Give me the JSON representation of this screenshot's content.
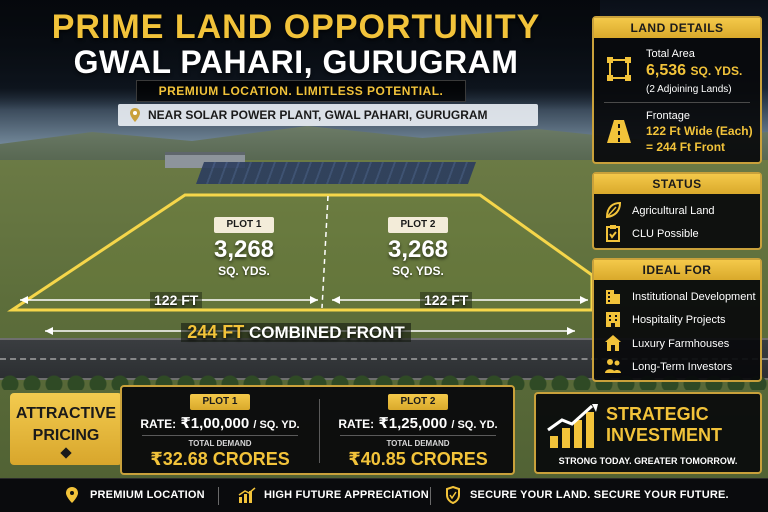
{
  "header": {
    "title": "PRIME LAND OPPORTUNITY",
    "subtitle": "GWAL PAHARI, GURUGRAM",
    "tagline": "PREMIUM LOCATION. LIMITLESS POTENTIAL.",
    "location": "NEAR SOLAR POWER PLANT, GWAL PAHARI, GURUGRAM"
  },
  "plots": [
    {
      "tag": "PLOT 1",
      "area": "3,268",
      "unit": "SQ. YDS.",
      "front": "122 FT"
    },
    {
      "tag": "PLOT 2",
      "area": "3,268",
      "unit": "SQ. YDS.",
      "front": "122 FT"
    }
  ],
  "combined": {
    "value": "244 FT",
    "label": "COMBINED FRONT"
  },
  "land_details": {
    "heading": "LAND DETAILS",
    "area_label": "Total Area",
    "area_value": "6,536",
    "area_unit": "SQ. YDS.",
    "area_note": "(2 Adjoining Lands)",
    "frontage_label": "Frontage",
    "frontage_each": "122 Ft",
    "frontage_each_note": "Wide (Each)",
    "frontage_total": "= 244 Ft Front"
  },
  "status": {
    "heading": "STATUS",
    "items": [
      "Agricultural Land",
      "CLU Possible"
    ]
  },
  "ideal_for": {
    "heading": "IDEAL FOR",
    "items": [
      "Institutional Development",
      "Hospitality Projects",
      "Luxury Farmhouses",
      "Long-Term Investors"
    ]
  },
  "pricing": {
    "badge_line1": "ATTRACTIVE",
    "badge_line2": "PRICING",
    "columns": [
      {
        "tag": "PLOT 1",
        "rate_label": "RATE:",
        "rate": "₹1,00,000",
        "rate_unit": "/ SQ. YD.",
        "demand_label": "TOTAL DEMAND",
        "demand": "₹32.68 CRORES"
      },
      {
        "tag": "PLOT 2",
        "rate_label": "RATE:",
        "rate": "₹1,25,000",
        "rate_unit": "/ SQ. YD.",
        "demand_label": "TOTAL DEMAND",
        "demand": "₹40.85 CRORES"
      }
    ]
  },
  "strategic": {
    "line1": "STRATEGIC",
    "line2": "INVESTMENT",
    "slogan": "STRONG TODAY. GREATER TOMORROW."
  },
  "footer": {
    "items": [
      "PREMIUM LOCATION",
      "HIGH FUTURE APPRECIATION",
      "SECURE YOUR LAND. SECURE YOUR FUTURE."
    ]
  },
  "colors": {
    "gold": "#f2c33a",
    "dark": "#0b0d10"
  }
}
